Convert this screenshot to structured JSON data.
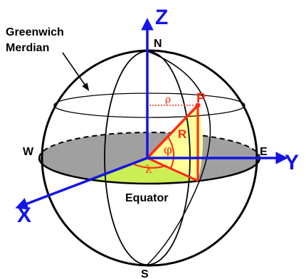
{
  "labels": {
    "z_axis": "Z",
    "x_axis": "X",
    "y_axis": "Y",
    "north": "N",
    "south": "S",
    "east": "E",
    "west": "W",
    "point": "P",
    "radius": "R",
    "rho": "ρ",
    "phi": "φ",
    "lambda": "λ",
    "equator": "Equator",
    "greenwich_line1": "Greenwich",
    "greenwich_line2": "Merdian"
  },
  "colors": {
    "outline": "#000000",
    "axis": "#1414e6",
    "vector": "#ff2a10",
    "rho_line": "#ff2a10",
    "yellow_fill": "#ffff99",
    "green_fill": "#ccee55",
    "equator_fill": "#a0a0a0"
  }
}
